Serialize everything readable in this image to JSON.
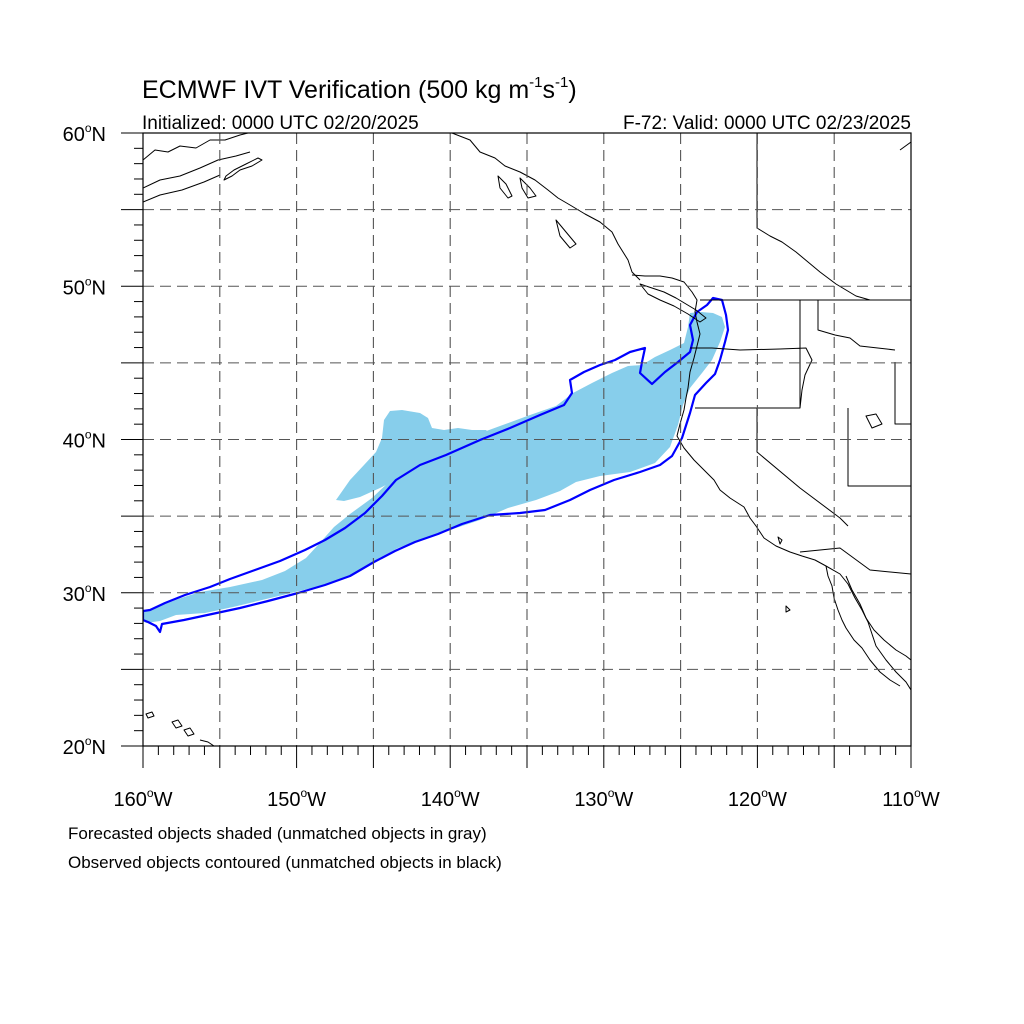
{
  "figure": {
    "title": {
      "main": "ECMWF IVT Verification (500 kg m",
      "exp1": "-1",
      "mid": "s",
      "exp2": "-1",
      "end": ")"
    },
    "initialized": "Initialized: 0000 UTC 02/20/2025",
    "valid": "F-72: Valid: 0000 UTC 02/23/2025"
  },
  "map": {
    "lat_range": [
      20,
      60
    ],
    "lon_range": [
      -160,
      -110
    ],
    "grid": "dashed",
    "lat_labels": [
      {
        "lat": 60,
        "num": "60",
        "suffix": "N"
      },
      {
        "lat": 50,
        "num": "50",
        "suffix": "N"
      },
      {
        "lat": 40,
        "num": "40",
        "suffix": "N"
      },
      {
        "lat": 30,
        "num": "30",
        "suffix": "N"
      },
      {
        "lat": 20,
        "num": "20",
        "suffix": "N"
      }
    ],
    "lon_labels": [
      {
        "lon": -160,
        "num": "160",
        "suffix": "W"
      },
      {
        "lon": -150,
        "num": "150",
        "suffix": "W"
      },
      {
        "lon": -140,
        "num": "140",
        "suffix": "W"
      },
      {
        "lon": -130,
        "num": "130",
        "suffix": "W"
      },
      {
        "lon": -120,
        "num": "120",
        "suffix": "W"
      },
      {
        "lon": -110,
        "num": "110",
        "suffix": "W"
      }
    ],
    "colors": {
      "forecast_fill": "#87ceeb",
      "observed_contour": "#0000ff",
      "coastline": "#000000",
      "grid": "#555555"
    }
  },
  "captions": {
    "forecast": "Forecasted objects shaded (unmatched objects in gray)",
    "observed": "Observed objects contoured (unmatched objects in black)"
  }
}
